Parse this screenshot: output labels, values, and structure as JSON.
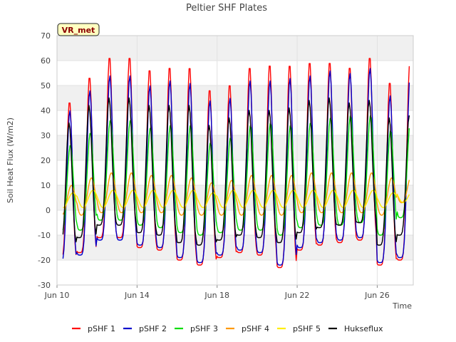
{
  "chart_data": {
    "type": "line",
    "title": "Peltier SHF Plates",
    "xlabel": "Time",
    "ylabel": "Soil Heat Flux (W/m2)",
    "site_label": "VR_met",
    "ylim": [
      -30,
      70
    ],
    "yticks": [
      -30,
      -20,
      -10,
      0,
      10,
      20,
      30,
      40,
      50,
      60,
      70
    ],
    "xlim": [
      10.0,
      27.8
    ],
    "xticks": [
      {
        "value": 10,
        "label": "Jun 10"
      },
      {
        "value": 14,
        "label": "Jun 14"
      },
      {
        "value": 18,
        "label": "Jun 18"
      },
      {
        "value": 22,
        "label": "Jun 22"
      },
      {
        "value": 26,
        "label": "Jun 26"
      }
    ],
    "x_start": 10.3,
    "x_end": 27.6,
    "x_step_days": 0.05,
    "background_bands": true,
    "legend_position": "bottom",
    "daily_peaks": {
      "days": [
        10,
        11,
        12,
        13,
        14,
        15,
        16,
        17,
        18,
        19,
        20,
        21,
        22,
        23,
        24,
        25,
        26,
        27
      ],
      "pSHF 1": [
        44,
        54,
        62,
        62,
        57,
        58,
        58,
        49,
        51,
        58,
        59,
        59,
        60,
        60,
        58,
        62,
        52,
        59
      ],
      "pSHF 2": [
        40,
        48,
        54,
        54,
        50,
        52,
        51,
        44,
        45,
        52,
        52,
        53,
        54,
        56,
        55,
        57,
        46,
        54
      ],
      "pSHF 3": [
        26,
        31,
        36,
        36,
        33,
        34,
        34,
        27,
        29,
        34,
        35,
        34,
        35,
        37,
        38,
        38,
        32,
        36
      ],
      "pSHF 4": [
        10,
        13,
        15,
        15,
        14,
        14,
        13,
        11,
        12,
        14,
        14,
        14,
        15,
        15,
        15,
        15,
        13,
        14
      ],
      "pSHF 5": [
        7,
        8,
        8,
        8,
        8,
        8,
        8,
        7,
        8,
        8,
        8,
        8,
        8,
        8,
        8,
        8,
        7,
        8
      ],
      "Hukseflux": [
        35,
        42,
        45,
        45,
        42,
        42,
        42,
        34,
        37,
        40,
        40,
        41,
        44,
        45,
        43,
        44,
        37,
        38
      ]
    },
    "daily_troughs": {
      "days": [
        10,
        11,
        12,
        13,
        14,
        15,
        16,
        17,
        18,
        19,
        20,
        21,
        22,
        23,
        24,
        25,
        26,
        27
      ],
      "pSHF 1": [
        -20,
        -17,
        -11,
        -11,
        -15,
        -16,
        -20,
        -22,
        -19,
        -17,
        -18,
        -23,
        -16,
        -14,
        -13,
        -12,
        -22,
        -20
      ],
      "pSHF 2": [
        -21,
        -18,
        -12,
        -12,
        -14,
        -15,
        -19,
        -21,
        -18,
        -16,
        -17,
        -22,
        -15,
        -13,
        -12,
        -11,
        -21,
        -19
      ],
      "pSHF 3": [
        -9,
        -8,
        -4,
        -4,
        -6,
        -7,
        -9,
        -10,
        -9,
        -8,
        -8,
        -10,
        -7,
        -6,
        -6,
        -5,
        -10,
        -3
      ],
      "pSHF 4": [
        -2,
        -2,
        -1,
        -1,
        -1,
        -1,
        -2,
        -2,
        -2,
        -2,
        -2,
        -2,
        -1,
        -1,
        -1,
        -1,
        -2,
        3
      ],
      "pSHF 5": [
        1,
        1,
        1,
        1,
        1,
        1,
        1,
        1,
        1,
        1,
        1,
        1,
        1,
        1,
        1,
        1,
        1,
        3
      ],
      "Hukseflux": [
        -14,
        -11,
        -6,
        -6,
        -9,
        -10,
        -13,
        -14,
        -12,
        -10,
        -11,
        -13,
        -9,
        -7,
        -6,
        -5,
        -14,
        -10
      ]
    },
    "series": [
      {
        "name": "pSHF 1",
        "color": "#ff0000"
      },
      {
        "name": "pSHF 2",
        "color": "#0000cc"
      },
      {
        "name": "pSHF 3",
        "color": "#00dd00"
      },
      {
        "name": "pSHF 4",
        "color": "#ff9900"
      },
      {
        "name": "pSHF 5",
        "color": "#ffee00"
      },
      {
        "name": "Hukseflux",
        "color": "#000000"
      }
    ]
  }
}
